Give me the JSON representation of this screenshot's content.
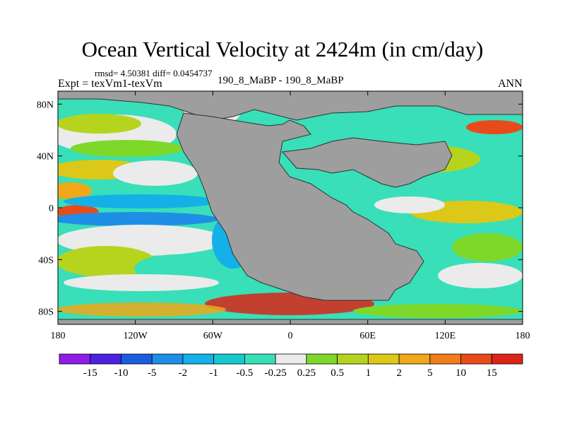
{
  "header": {
    "title": "Ocean Vertical Velocity at 2424m (in cm/day)",
    "stats": "rmsd= 4.50381 diff= 0.0454737",
    "expt": "Expt = texVm1-texVm",
    "case": "190_8_MaBP - 190_8_MaBP",
    "season": "ANN"
  },
  "chart_data": {
    "type": "heatmap",
    "title": "Ocean Vertical Velocity at 2424m (in cm/day)",
    "units": "cm/day",
    "xlabel": "",
    "ylabel": "",
    "xlim": [
      -180,
      180
    ],
    "ylim": [
      -90,
      90
    ],
    "x_ticks": [
      {
        "value": -180,
        "label": "180"
      },
      {
        "value": -120,
        "label": "120W"
      },
      {
        "value": -60,
        "label": "60W"
      },
      {
        "value": 0,
        "label": "0"
      },
      {
        "value": 60,
        "label": "60E"
      },
      {
        "value": 120,
        "label": "120E"
      },
      {
        "value": 180,
        "label": "180"
      }
    ],
    "y_ticks": [
      {
        "value": 80,
        "label": "80N"
      },
      {
        "value": 40,
        "label": "40N"
      },
      {
        "value": 0,
        "label": "0"
      },
      {
        "value": -40,
        "label": "40S"
      },
      {
        "value": -80,
        "label": "80S"
      }
    ],
    "colorbar": {
      "levels": [
        "-15",
        "-10",
        "-5",
        "-2",
        "-1",
        "-0.5",
        "-0.25",
        "0.25",
        "0.5",
        "1",
        "2",
        "5",
        "10",
        "15"
      ],
      "colors": [
        "#8f1de6",
        "#4a22e0",
        "#1a5ee0",
        "#1e8ee6",
        "#14b0e8",
        "#18c8d0",
        "#38dfb8",
        "#ebebeb",
        "#7ed82a",
        "#b6d41e",
        "#dcc818",
        "#eea818",
        "#f07c1c",
        "#e84a1c",
        "#dc2418"
      ]
    },
    "land_color": "#9e9e9e"
  }
}
